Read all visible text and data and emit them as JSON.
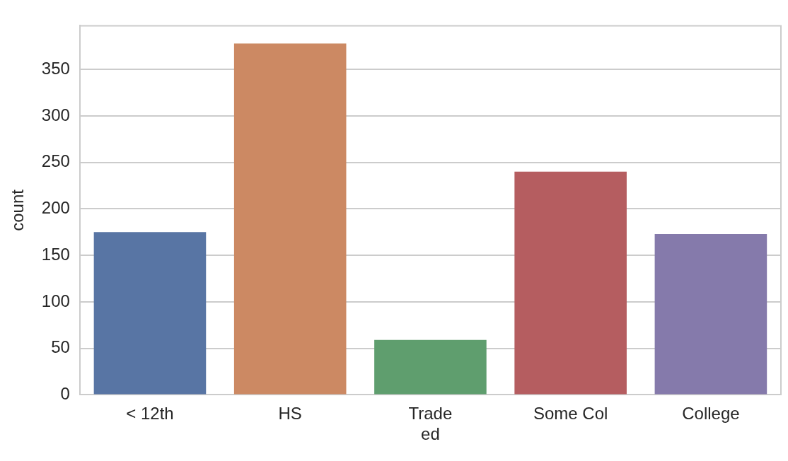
{
  "chart_data": {
    "type": "bar",
    "ylabel": "count",
    "categories": [
      "< 12th",
      "HS",
      "Trade\ned",
      "Some Col",
      "College"
    ],
    "values": [
      175,
      378,
      59,
      240,
      173
    ],
    "colors": [
      "#5875a4",
      "#cc8963",
      "#5f9e6e",
      "#b55d60",
      "#857aab"
    ],
    "ylim": [
      0,
      397
    ],
    "yticks": [
      0,
      50,
      100,
      150,
      200,
      250,
      300,
      350
    ],
    "grid": "y",
    "legend": false
  }
}
